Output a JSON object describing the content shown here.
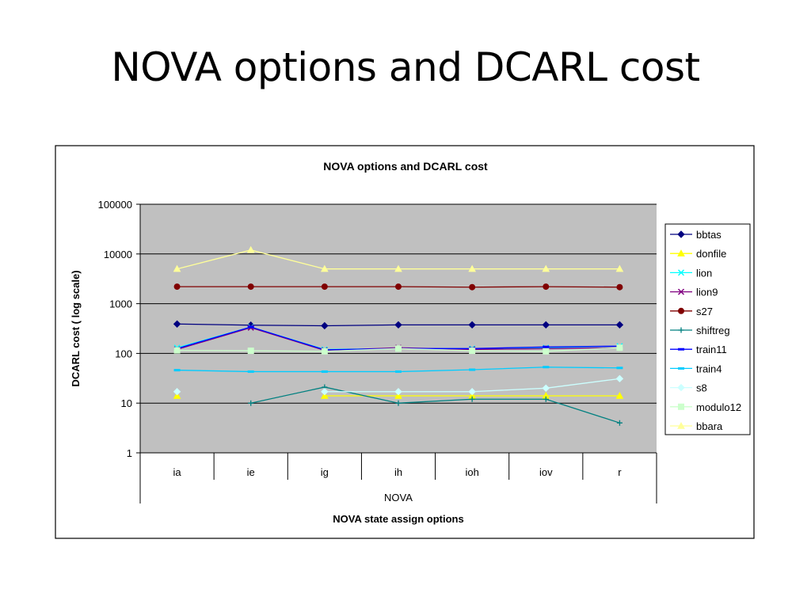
{
  "slide": {
    "title": "NOVA options and DCARL cost"
  },
  "chart_data": {
    "type": "line",
    "title": "NOVA options and DCARL cost",
    "ylabel": "DCARL cost ( log scale)",
    "xlabel": "NOVA state assign options",
    "x_group_label": "NOVA",
    "categories": [
      "ia",
      "ie",
      "ig",
      "ih",
      "ioh",
      "iov",
      "r"
    ],
    "y_scale": "log",
    "ylim": [
      1,
      100000
    ],
    "y_ticks": [
      1,
      10,
      100,
      1000,
      10000,
      100000
    ],
    "y_tick_labels": [
      "1",
      "10",
      "100",
      "1000",
      "10000",
      "100000"
    ],
    "grid": true,
    "legend_position": "right",
    "plot_background": "#c0c0c0",
    "series": [
      {
        "name": "bbtas",
        "color": "#000080",
        "marker": "diamond",
        "values": [
          390,
          370,
          360,
          375,
          375,
          375,
          375
        ]
      },
      {
        "name": "donfile",
        "color": "#ffff00",
        "marker": "triangle",
        "values": [
          14,
          null,
          14,
          14,
          14,
          14,
          14
        ]
      },
      {
        "name": "lion",
        "color": "#00ffff",
        "marker": "x",
        "values": [
          130,
          340,
          120,
          125,
          125,
          130,
          140
        ]
      },
      {
        "name": "lion9",
        "color": "#800080",
        "marker": "x",
        "values": [
          120,
          330,
          115,
          130,
          120,
          125,
          130
        ]
      },
      {
        "name": "s27",
        "color": "#800000",
        "marker": "circle",
        "values": [
          2200,
          2200,
          2200,
          2200,
          2150,
          2200,
          2150
        ]
      },
      {
        "name": "shiftreg",
        "color": "#008080",
        "marker": "plus",
        "values": [
          null,
          10,
          21,
          10,
          12,
          12,
          4
        ]
      },
      {
        "name": "train11",
        "color": "#0000ff",
        "marker": "dash",
        "values": [
          125,
          340,
          118,
          125,
          125,
          135,
          140
        ]
      },
      {
        "name": "train4",
        "color": "#00ccff",
        "marker": "dash",
        "values": [
          46,
          43,
          43,
          43,
          47,
          53,
          51
        ]
      },
      {
        "name": "s8",
        "color": "#ccffff",
        "marker": "diamond",
        "values": [
          17,
          null,
          17,
          17,
          17,
          20,
          31
        ]
      },
      {
        "name": "modulo12",
        "color": "#ccffcc",
        "marker": "square",
        "values": [
          115,
          113,
          110,
          125,
          113,
          110,
          130
        ]
      },
      {
        "name": "bbara",
        "color": "#ffff99",
        "marker": "triangle",
        "values": [
          5000,
          12000,
          5000,
          5000,
          5000,
          5000,
          5000
        ]
      }
    ]
  }
}
